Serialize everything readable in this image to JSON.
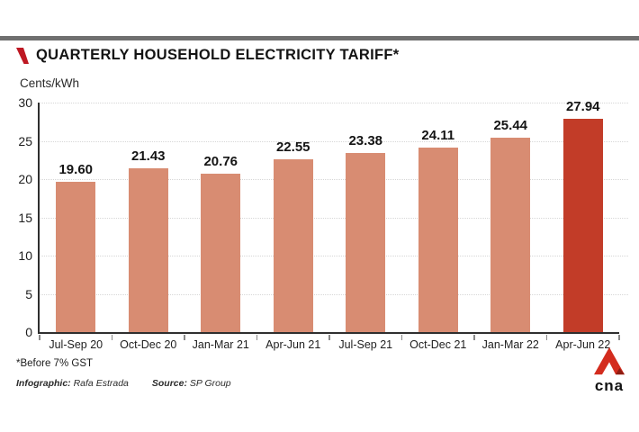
{
  "header": {
    "title": "QUARTERLY HOUSEHOLD ELECTRICITY TARIFF*",
    "accent_color": "#be1823"
  },
  "chart_data": {
    "type": "bar",
    "title": "QUARTERLY HOUSEHOLD ELECTRICITY TARIFF*",
    "units_label": "Cents/kWh",
    "categories": [
      "Jul-Sep 20",
      "Oct-Dec 20",
      "Jan-Mar 21",
      "Apr-Jun 21",
      "Jul-Sep 21",
      "Oct-Dec 21",
      "Jan-Mar 22",
      "Apr-Jun 22"
    ],
    "values": [
      19.6,
      21.43,
      20.76,
      22.55,
      23.38,
      24.11,
      25.44,
      27.94
    ],
    "value_labels": [
      "19.60",
      "21.43",
      "20.76",
      "22.55",
      "23.38",
      "24.11",
      "25.44",
      "27.94"
    ],
    "ylim": [
      0,
      30
    ],
    "yticks": [
      0,
      5,
      10,
      15,
      20,
      25,
      30
    ],
    "grid": "dotted horizontal gridlines",
    "legend": "none",
    "bar_color": "#d88c72",
    "highlight_color": "#c23c28",
    "highlight_index": 7
  },
  "footer": {
    "footnote": "*Before 7% GST",
    "infographic_label": "Infographic:",
    "infographic_name": "Rafa Estrada",
    "source_label": "Source:",
    "source_name": "SP Group",
    "logo_text": "cna"
  },
  "colors": {
    "top_bar": "#6f6f6f",
    "axis": "#2f2f2f",
    "gridline": "#d6d6d6",
    "logo_red": "#d32c1e"
  }
}
